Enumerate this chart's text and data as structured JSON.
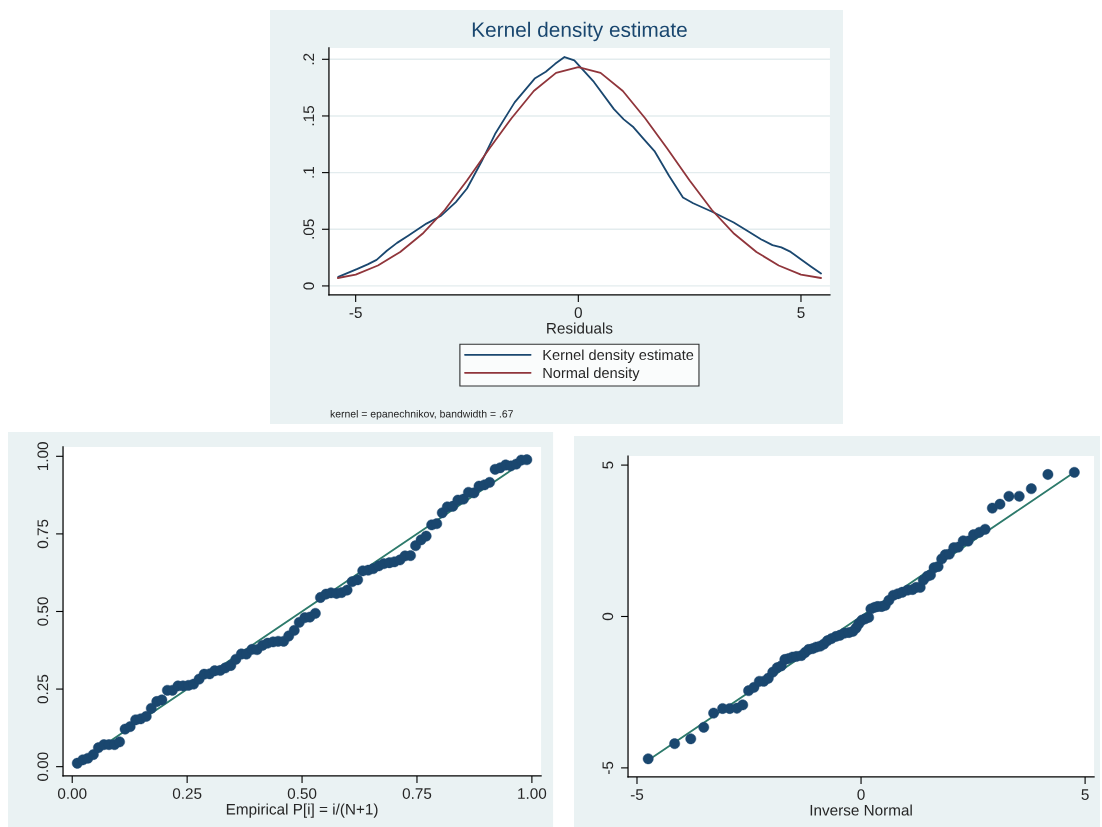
{
  "chart_data": [
    {
      "type": "line",
      "title": "Kernel density estimate",
      "xlabel": "Residuals",
      "grid": "y",
      "legend": "bottom",
      "xlim": [
        -5.6,
        5.65
      ],
      "ylim": [
        -0.008,
        0.21
      ],
      "xticks": [
        -5,
        0,
        5
      ],
      "yticks": [
        0,
        {
          "value": 0.05,
          "label": ".05"
        },
        {
          "value": 0.1,
          "label": ".1"
        },
        {
          "value": 0.15,
          "label": ".15"
        },
        {
          "value": 0.2,
          "label": ".2"
        }
      ],
      "series": [
        {
          "name": "Kernel density estimate",
          "color": "#1a476f",
          "x": [
            -5.39,
            -4.96,
            -4.73,
            -4.53,
            -4.3,
            -4.07,
            -3.83,
            -3.41,
            -3.08,
            -2.75,
            -2.5,
            -2.17,
            -1.87,
            -1.43,
            -0.98,
            -0.73,
            -0.52,
            -0.31,
            -0.09,
            0.35,
            0.8,
            1.02,
            1.24,
            1.46,
            1.71,
            2.04,
            2.35,
            2.58,
            3.03,
            3.49,
            3.82,
            4.11,
            4.36,
            4.56,
            4.77,
            4.98,
            5.23,
            5.45
          ],
          "values": [
            0.008,
            0.015,
            0.019,
            0.023,
            0.031,
            0.038,
            0.044,
            0.055,
            0.062,
            0.074,
            0.086,
            0.11,
            0.134,
            0.162,
            0.183,
            0.189,
            0.196,
            0.202,
            0.199,
            0.18,
            0.156,
            0.147,
            0.14,
            0.13,
            0.119,
            0.097,
            0.078,
            0.073,
            0.065,
            0.056,
            0.048,
            0.041,
            0.036,
            0.034,
            0.03,
            0.024,
            0.017,
            0.011
          ]
        },
        {
          "name": "Normal density",
          "color": "#90353b",
          "x": [
            -5.4,
            -5,
            -4.5,
            -4,
            -3.5,
            -3,
            -2.5,
            -2,
            -1.5,
            -1,
            -0.5,
            0,
            0.5,
            1,
            1.5,
            2,
            2.5,
            3,
            3.5,
            4,
            4.5,
            5,
            5.45
          ],
          "values": [
            0.007,
            0.01,
            0.018,
            0.03,
            0.046,
            0.067,
            0.093,
            0.121,
            0.148,
            0.172,
            0.188,
            0.193,
            0.188,
            0.172,
            0.148,
            0.121,
            0.093,
            0.067,
            0.046,
            0.03,
            0.018,
            0.01,
            0.007
          ]
        }
      ],
      "annotations": [
        "kernel = epanechnikov, bandwidth = .67"
      ]
    },
    {
      "type": "scatter",
      "xlabel": "Empirical P[i] = i/(N+1)",
      "xlim": [
        -0.02,
        1.02
      ],
      "ylim": [
        -0.03,
        1.03
      ],
      "xticks": [
        {
          "value": 0,
          "label": "0.00"
        },
        {
          "value": 0.25,
          "label": "0.25"
        },
        {
          "value": 0.5,
          "label": "0.50"
        },
        {
          "value": 0.75,
          "label": "0.75"
        },
        {
          "value": 1,
          "label": "1.00"
        }
      ],
      "yticks": [
        {
          "value": 0,
          "label": "0.00"
        },
        {
          "value": 0.25,
          "label": "0.25"
        },
        {
          "value": 0.5,
          "label": "0.50"
        },
        {
          "value": 0.75,
          "label": "0.75"
        },
        {
          "value": 1,
          "label": "1.00"
        }
      ],
      "series": [
        {
          "type": "scatter",
          "marker": "circle",
          "color": "#1a476f",
          "x": [
            0.011,
            0.023,
            0.034,
            0.046,
            0.057,
            0.069,
            0.08,
            0.092,
            0.103,
            0.115,
            0.126,
            0.138,
            0.149,
            0.161,
            0.172,
            0.184,
            0.195,
            0.207,
            0.218,
            0.23,
            0.241,
            0.253,
            0.264,
            0.276,
            0.287,
            0.299,
            0.31,
            0.322,
            0.333,
            0.345,
            0.356,
            0.368,
            0.379,
            0.391,
            0.402,
            0.414,
            0.425,
            0.437,
            0.448,
            0.46,
            0.471,
            0.483,
            0.494,
            0.506,
            0.517,
            0.529,
            0.54,
            0.552,
            0.563,
            0.575,
            0.586,
            0.598,
            0.609,
            0.621,
            0.632,
            0.644,
            0.655,
            0.667,
            0.678,
            0.69,
            0.701,
            0.713,
            0.724,
            0.736,
            0.747,
            0.759,
            0.77,
            0.782,
            0.793,
            0.805,
            0.816,
            0.828,
            0.839,
            0.851,
            0.862,
            0.874,
            0.885,
            0.897,
            0.908,
            0.92,
            0.931,
            0.943,
            0.954,
            0.966,
            0.977,
            0.989
          ],
          "values": [
            0.011,
            0.022,
            0.027,
            0.039,
            0.061,
            0.071,
            0.071,
            0.071,
            0.08,
            0.121,
            0.129,
            0.151,
            0.154,
            0.162,
            0.188,
            0.21,
            0.215,
            0.246,
            0.246,
            0.26,
            0.26,
            0.262,
            0.266,
            0.282,
            0.298,
            0.299,
            0.309,
            0.31,
            0.318,
            0.326,
            0.346,
            0.363,
            0.363,
            0.378,
            0.377,
            0.391,
            0.398,
            0.402,
            0.404,
            0.404,
            0.421,
            0.439,
            0.465,
            0.48,
            0.482,
            0.494,
            0.545,
            0.556,
            0.56,
            0.558,
            0.561,
            0.569,
            0.596,
            0.602,
            0.631,
            0.633,
            0.638,
            0.647,
            0.654,
            0.657,
            0.66,
            0.666,
            0.679,
            0.68,
            0.712,
            0.731,
            0.743,
            0.779,
            0.783,
            0.818,
            0.837,
            0.839,
            0.859,
            0.862,
            0.884,
            0.882,
            0.904,
            0.908,
            0.916,
            0.958,
            0.963,
            0.972,
            0.969,
            0.975,
            0.988,
            0.989
          ]
        },
        {
          "type": "line",
          "color": "#2d7a6b",
          "x": [
            0.011,
            0.989
          ],
          "values": [
            0.011,
            0.989
          ]
        }
      ]
    },
    {
      "type": "scatter",
      "xlabel": "Inverse Normal",
      "xlim": [
        -5.2,
        5.2
      ],
      "ylim": [
        -5.3,
        5.3
      ],
      "xticks": [
        {
          "value": -5,
          "label": "-5"
        },
        0,
        5
      ],
      "yticks": [
        {
          "value": -5,
          "label": "-5"
        },
        0,
        5
      ],
      "series": [
        {
          "type": "scatter",
          "marker": "circle",
          "color": "#1a476f",
          "x": [
            -4.75,
            -4.16,
            -3.8,
            -3.51,
            -3.29,
            -3.09,
            -2.93,
            -2.77,
            -2.64,
            -2.51,
            -2.39,
            -2.27,
            -2.17,
            -2.07,
            -1.97,
            -1.87,
            -1.78,
            -1.7,
            -1.62,
            -1.53,
            -1.44,
            -1.33,
            -1.25,
            -1.17,
            -1.08,
            -1.0,
            -0.91,
            -0.83,
            -0.75,
            -0.66,
            -0.56,
            -0.47,
            -0.37,
            -0.27,
            -0.18,
            -0.11,
            -0.05,
            0.02,
            0.09,
            0.17,
            0.22,
            0.3,
            0.37,
            0.46,
            0.54,
            0.62,
            0.72,
            0.82,
            0.92,
            1.04,
            1.15,
            1.23,
            1.32,
            1.39,
            1.48,
            1.55,
            1.63,
            1.72,
            1.8,
            1.88,
            1.97,
            2.07,
            2.17,
            2.28,
            2.39,
            2.51,
            2.64,
            2.77,
            2.93,
            3.1,
            3.3,
            3.53,
            3.8,
            4.17,
            4.76
          ],
          "values": [
            -4.7,
            -4.2,
            -4.04,
            -3.66,
            -3.19,
            -3.04,
            -3.04,
            -3.03,
            -2.92,
            -2.45,
            -2.34,
            -2.14,
            -2.14,
            -2.04,
            -1.84,
            -1.69,
            -1.63,
            -1.42,
            -1.39,
            -1.34,
            -1.32,
            -1.29,
            -1.19,
            -1.09,
            -1.06,
            -1.01,
            -0.98,
            -0.91,
            -0.8,
            -0.73,
            -0.66,
            -0.62,
            -0.55,
            -0.53,
            -0.49,
            -0.38,
            -0.24,
            -0.12,
            -0.08,
            -0.03,
            0.25,
            0.3,
            0.33,
            0.33,
            0.37,
            0.53,
            0.7,
            0.75,
            0.8,
            0.87,
            0.89,
            0.96,
            0.96,
            1.2,
            1.33,
            1.37,
            1.61,
            1.65,
            1.9,
            2.04,
            2.06,
            2.27,
            2.29,
            2.5,
            2.49,
            2.7,
            2.78,
            2.88,
            3.58,
            3.71,
            3.97,
            3.97,
            4.22,
            4.69,
            4.76
          ]
        },
        {
          "type": "line",
          "color": "#2d7a6b",
          "x": [
            -4.75,
            4.76
          ],
          "values": [
            -4.75,
            4.76
          ]
        }
      ]
    }
  ]
}
